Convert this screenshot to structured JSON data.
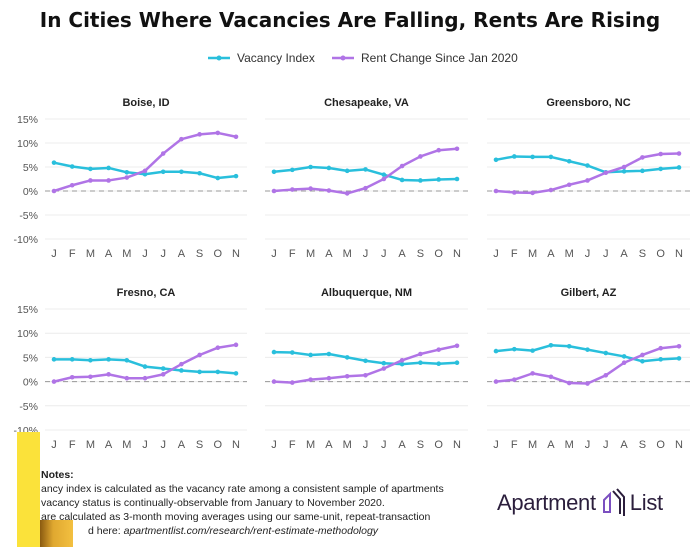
{
  "chart_data": {
    "type": "line",
    "title": "In Cities Where Vacancies Are Falling, Rents Are Rising",
    "x": [
      "J",
      "F",
      "M",
      "A",
      "M",
      "J",
      "J",
      "A",
      "S",
      "O",
      "N"
    ],
    "ylim": [
      -10,
      15
    ],
    "yticks": [
      -10,
      -5,
      0,
      5,
      10,
      15
    ],
    "ytick_labels": [
      "-10%",
      "-5%",
      "0%",
      "5%",
      "10%",
      "15%"
    ],
    "grid": true,
    "reference_line": 0,
    "legend": {
      "placement": "top-center",
      "entries": [
        "Vacancy Index",
        "Rent Change Since Jan 2020"
      ]
    },
    "colors": {
      "Vacancy Index": "#29bfdc",
      "Rent Change Since Jan 2020": "#b074e6"
    },
    "panels": [
      {
        "title": "Boise, ID",
        "series": [
          {
            "name": "Vacancy Index",
            "values": [
              5.9,
              5.1,
              4.6,
              4.8,
              3.9,
              3.5,
              4.0,
              4.0,
              3.7,
              2.7,
              3.1
            ]
          },
          {
            "name": "Rent Change Since Jan 2020",
            "values": [
              0,
              1.2,
              2.2,
              2.2,
              2.8,
              4.2,
              7.8,
              10.8,
              11.8,
              12.1,
              11.3
            ]
          }
        ]
      },
      {
        "title": "Chesapeake, VA",
        "series": [
          {
            "name": "Vacancy Index",
            "values": [
              4.0,
              4.4,
              5.0,
              4.8,
              4.2,
              4.5,
              3.4,
              2.3,
              2.2,
              2.4,
              2.5
            ]
          },
          {
            "name": "Rent Change Since Jan 2020",
            "values": [
              0,
              0.3,
              0.5,
              0.1,
              -0.5,
              0.6,
              2.5,
              5.2,
              7.2,
              8.5,
              8.8
            ]
          }
        ]
      },
      {
        "title": "Greensboro, NC",
        "series": [
          {
            "name": "Vacancy Index",
            "values": [
              6.5,
              7.2,
              7.1,
              7.1,
              6.2,
              5.3,
              3.9,
              4.1,
              4.2,
              4.6,
              4.9
            ]
          },
          {
            "name": "Rent Change Since Jan 2020",
            "values": [
              0,
              -0.3,
              -0.4,
              0.2,
              1.3,
              2.2,
              3.8,
              5.0,
              7.0,
              7.7,
              7.8
            ]
          }
        ]
      },
      {
        "title": "Fresno, CA",
        "series": [
          {
            "name": "Vacancy Index",
            "values": [
              4.6,
              4.6,
              4.4,
              4.6,
              4.4,
              3.1,
              2.7,
              2.3,
              2.0,
              2.0,
              1.7
            ]
          },
          {
            "name": "Rent Change Since Jan 2020",
            "values": [
              0,
              0.9,
              1.0,
              1.5,
              0.7,
              0.7,
              1.5,
              3.6,
              5.5,
              7.0,
              7.6
            ]
          }
        ]
      },
      {
        "title": "Albuquerque, NM",
        "series": [
          {
            "name": "Vacancy Index",
            "values": [
              6.1,
              6.0,
              5.5,
              5.7,
              5.0,
              4.3,
              3.8,
              3.6,
              3.9,
              3.7,
              3.9
            ]
          },
          {
            "name": "Rent Change Since Jan 2020",
            "values": [
              0,
              -0.2,
              0.4,
              0.7,
              1.1,
              1.3,
              2.7,
              4.4,
              5.7,
              6.6,
              7.4
            ]
          }
        ]
      },
      {
        "title": "Gilbert, AZ",
        "series": [
          {
            "name": "Vacancy Index",
            "values": [
              6.3,
              6.7,
              6.4,
              7.5,
              7.3,
              6.6,
              5.9,
              5.2,
              4.2,
              4.6,
              4.8
            ]
          },
          {
            "name": "Rent Change Since Jan 2020",
            "values": [
              0,
              0.4,
              1.7,
              1.0,
              -0.3,
              -0.4,
              1.3,
              3.9,
              5.5,
              6.9,
              7.3
            ]
          }
        ]
      }
    ]
  },
  "notes": {
    "heading": "Notes:",
    "line1": "ancy index is calculated as the vacancy rate among a consistent sample of apartments",
    "line2": "vacancy status is continually-observable from January to November 2020.",
    "line3": "are calculated as 3-month moving averages using our same-unit, repeat-transaction",
    "line4_prefix": "d here: ",
    "line4_link": "apartmentlist.com/research/rent-estimate-methodology"
  },
  "logo": {
    "left": "Apartment",
    "right": "List"
  }
}
